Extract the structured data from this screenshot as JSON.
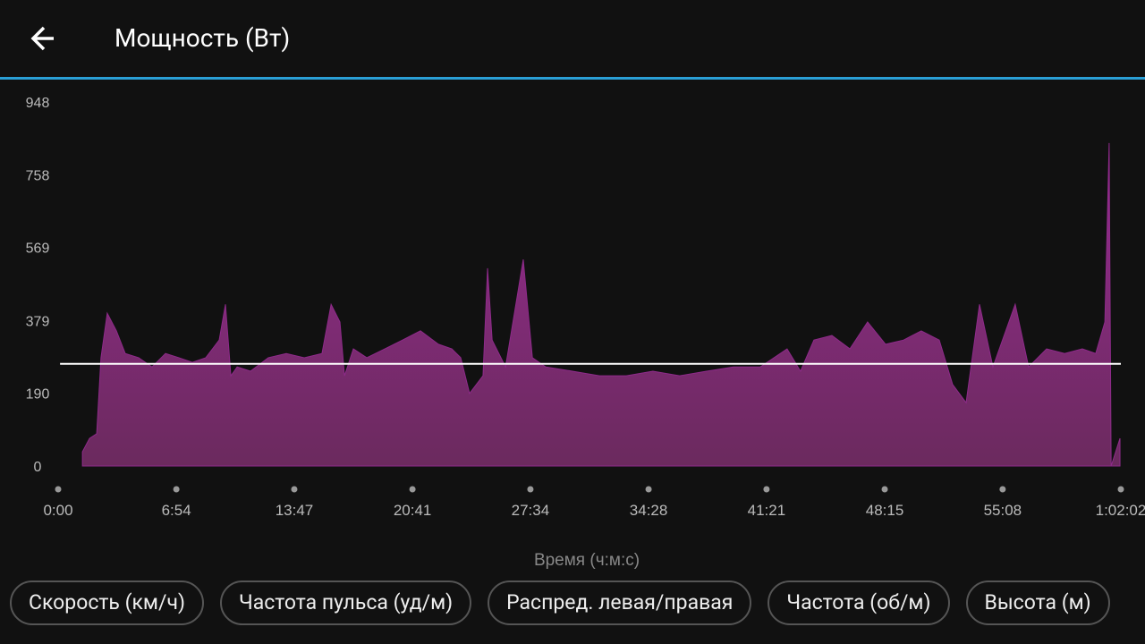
{
  "header": {
    "title": "Мощность (Вт)"
  },
  "chart_data": {
    "type": "area",
    "x_label": "Время (ч:м:с)",
    "color": "#8e2a8a",
    "average": 266,
    "x": [
      85,
      110,
      135,
      150,
      172,
      204,
      235,
      282,
      329,
      376,
      423,
      470,
      517,
      564,
      586,
      605,
      627,
      674,
      736,
      799,
      862,
      924,
      956,
      987,
      1003,
      1034,
      1081,
      1144,
      1206,
      1269,
      1332,
      1379,
      1410,
      1441,
      1488,
      1504,
      1520,
      1567,
      1629,
      1661,
      1708,
      1801,
      1896,
      1990,
      2083,
      2177,
      2271,
      2365,
      2459,
      2553,
      2600,
      2647,
      2710,
      2773,
      2835,
      2898,
      2961,
      3023,
      3086,
      3133,
      3180,
      3227,
      3274,
      3352,
      3399,
      3462,
      3525,
      3587,
      3634,
      3666,
      3681,
      3688,
      3719
    ],
    "values": [
      37,
      72,
      84,
      282,
      398,
      352,
      293,
      282,
      258,
      293,
      282,
      270,
      282,
      328,
      421,
      235,
      258,
      247,
      282,
      293,
      282,
      293,
      421,
      375,
      235,
      305,
      282,
      305,
      328,
      352,
      317,
      305,
      282,
      189,
      235,
      515,
      328,
      258,
      538,
      282,
      258,
      247,
      235,
      235,
      247,
      235,
      247,
      258,
      258,
      305,
      247,
      328,
      340,
      305,
      375,
      317,
      328,
      352,
      328,
      212,
      165,
      421,
      258,
      421,
      258,
      305,
      293,
      305,
      293,
      375,
      841,
      0,
      72
    ],
    "xlim": [
      0,
      3722
    ],
    "xticks": [
      {
        "value": 0,
        "label": "0:00"
      },
      {
        "value": 414,
        "label": "6:54"
      },
      {
        "value": 827,
        "label": "13:47"
      },
      {
        "value": 1241,
        "label": "20:41"
      },
      {
        "value": 1654,
        "label": "27:34"
      },
      {
        "value": 2068,
        "label": "34:28"
      },
      {
        "value": 2481,
        "label": "41:21"
      },
      {
        "value": 2895,
        "label": "48:15"
      },
      {
        "value": 3308,
        "label": "55:08"
      },
      {
        "value": 3722,
        "label": "1:02:02"
      }
    ],
    "ylim": [
      0,
      948
    ],
    "yticks": [
      0,
      190,
      379,
      569,
      758,
      948
    ]
  },
  "buttons": [
    "Скорость (км/ч)",
    "Частота пульса (уд/м)",
    "Распред. левая/правая",
    "Частота (об/м)",
    "Высота (м)"
  ]
}
